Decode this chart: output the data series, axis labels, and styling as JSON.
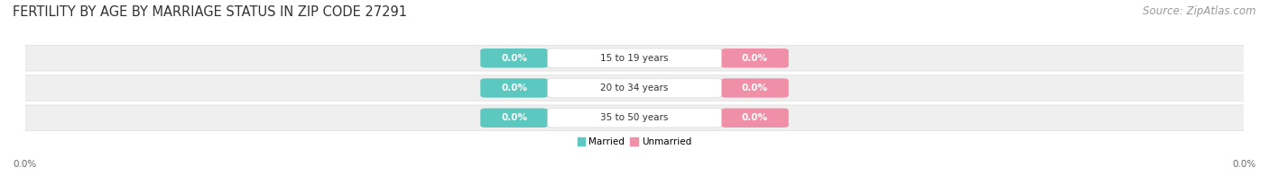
{
  "title": "FERTILITY BY AGE BY MARRIAGE STATUS IN ZIP CODE 27291",
  "source": "Source: ZipAtlas.com",
  "categories": [
    "15 to 19 years",
    "20 to 34 years",
    "35 to 50 years"
  ],
  "married_values": [
    0.0,
    0.0,
    0.0
  ],
  "unmarried_values": [
    0.0,
    0.0,
    0.0
  ],
  "married_color": "#5dc8c0",
  "unmarried_color": "#f090a8",
  "bar_bg_color": "#efefef",
  "bar_bg_edge": "#dddddd",
  "title_fontsize": 10.5,
  "source_fontsize": 8.5,
  "label_fontsize": 7.5,
  "badge_label_fontsize": 7.5,
  "axis_label_left": "0.0%",
  "axis_label_right": "0.0%",
  "legend_married": "Married",
  "legend_unmarried": "Unmarried",
  "background_color": "#ffffff"
}
